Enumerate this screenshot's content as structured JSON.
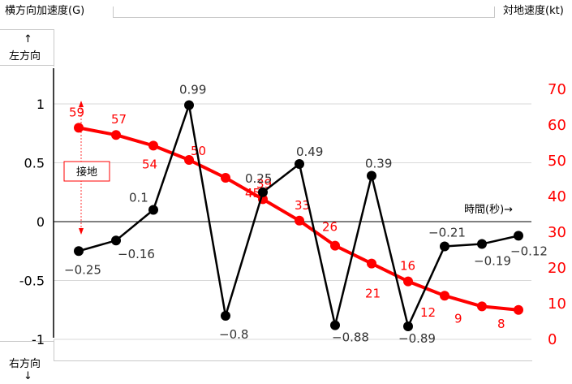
{
  "chart_data": {
    "type": "line",
    "left_axis": {
      "title": "横方向加速度(G)",
      "top_label": "左方向",
      "top_arrow": "↑",
      "bottom_label": "右方向",
      "bottom_arrow": "↓",
      "range": [
        -1,
        1.3
      ],
      "ticks": [
        1,
        0.5,
        0,
        -0.5,
        -1
      ],
      "tick_labels": [
        "1",
        "0.5",
        "0",
        "-0.5",
        "-1"
      ]
    },
    "right_axis": {
      "title": "対地速度(kt)",
      "range": [
        0,
        72
      ],
      "ticks": [
        70,
        60,
        50,
        40,
        30,
        20,
        10,
        0
      ],
      "tick_labels": [
        "70",
        "60",
        "50",
        "40",
        "30",
        "20",
        "10",
        "0"
      ]
    },
    "x_axis_label": "時間(秒)→",
    "annotation": "接地",
    "series": [
      {
        "axis": "left",
        "color": "#000000",
        "values": [
          -0.25,
          -0.16,
          0.1,
          0.99,
          -0.8,
          0.25,
          0.49,
          -0.88,
          0.39,
          -0.89,
          -0.21,
          -0.19,
          -0.12
        ],
        "labels": [
          "−0.25",
          "−0.16",
          "0.1",
          "0.99",
          "−0.8",
          "0.25",
          "0.49",
          "−0.88",
          "0.39",
          "−0.89",
          "−0.21",
          "−0.19",
          "−0.12"
        ]
      },
      {
        "axis": "right",
        "color": "#ff0000",
        "values": [
          59,
          57,
          54,
          50,
          45,
          39,
          33,
          26,
          21,
          16,
          12,
          9,
          8
        ],
        "labels": [
          "59",
          "57",
          "54",
          "50",
          "45",
          "39",
          "33",
          "26",
          "21",
          "16",
          "12",
          "9",
          "8"
        ]
      }
    ]
  }
}
